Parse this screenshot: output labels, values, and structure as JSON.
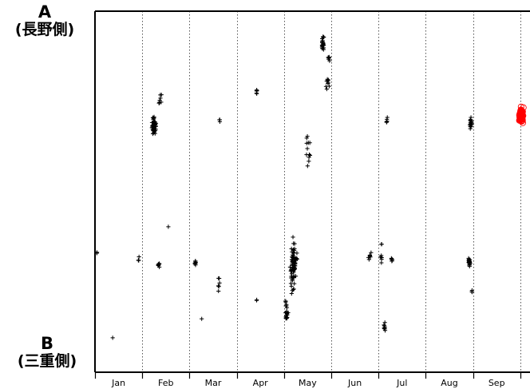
{
  "side_labels": {
    "top": {
      "letter": "A",
      "text": "(長野側)"
    },
    "bottom": {
      "letter": "B",
      "text": "(三重側)"
    }
  },
  "chart_data": {
    "type": "scatter",
    "title": "",
    "xlabel": "",
    "ylabel": "",
    "x_unit": "month",
    "categories": [
      "Jan",
      "Feb",
      "Mar",
      "Apr",
      "May",
      "Jun",
      "Jul",
      "Aug",
      "Sep"
    ],
    "xlim": [
      0,
      9.12
    ],
    "ylim": [
      0,
      1
    ],
    "y_axis_ends": {
      "top": "A",
      "bottom": "B"
    },
    "grid": "vertical dotted month separators",
    "colors": {
      "cross": "#000000",
      "circle": "#ff0000"
    },
    "series": [
      {
        "marker": "cross",
        "clusters": [
          {
            "x": 0.04,
            "y": 0.31,
            "spread_x": 0.01,
            "spread_y": 0.008,
            "n": 3
          },
          {
            "x": 0.38,
            "y": 0.065,
            "spread_x": 0.01,
            "spread_y": 0.006,
            "n": 1
          },
          {
            "x": 0.92,
            "y": 0.29,
            "spread_x": 0.02,
            "spread_y": 0.01,
            "n": 4
          },
          {
            "x": 1.25,
            "y": 0.675,
            "spread_x": 0.06,
            "spread_y": 0.04,
            "n": 55
          },
          {
            "x": 1.38,
            "y": 0.76,
            "spread_x": 0.04,
            "spread_y": 0.025,
            "n": 8
          },
          {
            "x": 1.35,
            "y": 0.275,
            "spread_x": 0.03,
            "spread_y": 0.01,
            "n": 8
          },
          {
            "x": 1.55,
            "y": 0.385,
            "spread_x": 0.01,
            "spread_y": 0.01,
            "n": 1
          },
          {
            "x": 2.12,
            "y": 0.28,
            "spread_x": 0.02,
            "spread_y": 0.02,
            "n": 8
          },
          {
            "x": 2.26,
            "y": 0.12,
            "spread_x": 0.01,
            "spread_y": 0.01,
            "n": 1
          },
          {
            "x": 2.62,
            "y": 0.215,
            "spread_x": 0.03,
            "spread_y": 0.04,
            "n": 6
          },
          {
            "x": 2.64,
            "y": 0.69,
            "spread_x": 0.01,
            "spread_y": 0.008,
            "n": 3
          },
          {
            "x": 3.42,
            "y": 0.77,
            "spread_x": 0.01,
            "spread_y": 0.015,
            "n": 6
          },
          {
            "x": 3.42,
            "y": 0.17,
            "spread_x": 0.01,
            "spread_y": 0.008,
            "n": 2
          },
          {
            "x": 4.2,
            "y": 0.27,
            "spread_x": 0.1,
            "spread_y": 0.1,
            "n": 80
          },
          {
            "x": 4.05,
            "y": 0.14,
            "spread_x": 0.05,
            "spread_y": 0.05,
            "n": 20
          },
          {
            "x": 4.52,
            "y": 0.6,
            "spread_x": 0.07,
            "spread_y": 0.07,
            "n": 12
          },
          {
            "x": 4.82,
            "y": 0.91,
            "spread_x": 0.04,
            "spread_y": 0.03,
            "n": 25
          },
          {
            "x": 4.95,
            "y": 0.87,
            "spread_x": 0.04,
            "spread_y": 0.02,
            "n": 6
          },
          {
            "x": 4.92,
            "y": 0.8,
            "spread_x": 0.06,
            "spread_y": 0.025,
            "n": 10
          },
          {
            "x": 5.82,
            "y": 0.3,
            "spread_x": 0.06,
            "spread_y": 0.02,
            "n": 7
          },
          {
            "x": 6.06,
            "y": 0.31,
            "spread_x": 0.02,
            "spread_y": 0.06,
            "n": 7
          },
          {
            "x": 6.18,
            "y": 0.69,
            "spread_x": 0.02,
            "spread_y": 0.015,
            "n": 5
          },
          {
            "x": 6.28,
            "y": 0.29,
            "spread_x": 0.02,
            "spread_y": 0.01,
            "n": 6
          },
          {
            "x": 6.12,
            "y": 0.1,
            "spread_x": 0.03,
            "spread_y": 0.03,
            "n": 8
          },
          {
            "x": 7.95,
            "y": 0.685,
            "spread_x": 0.03,
            "spread_y": 0.025,
            "n": 20
          },
          {
            "x": 7.92,
            "y": 0.285,
            "spread_x": 0.03,
            "spread_y": 0.02,
            "n": 20
          },
          {
            "x": 7.98,
            "y": 0.2,
            "spread_x": 0.01,
            "spread_y": 0.01,
            "n": 3
          }
        ]
      },
      {
        "marker": "circle",
        "color": "#ff0000",
        "clusters": [
          {
            "x": 9.02,
            "y": 0.705,
            "spread_x": 0.05,
            "spread_y": 0.03,
            "n": 60
          }
        ]
      }
    ]
  }
}
